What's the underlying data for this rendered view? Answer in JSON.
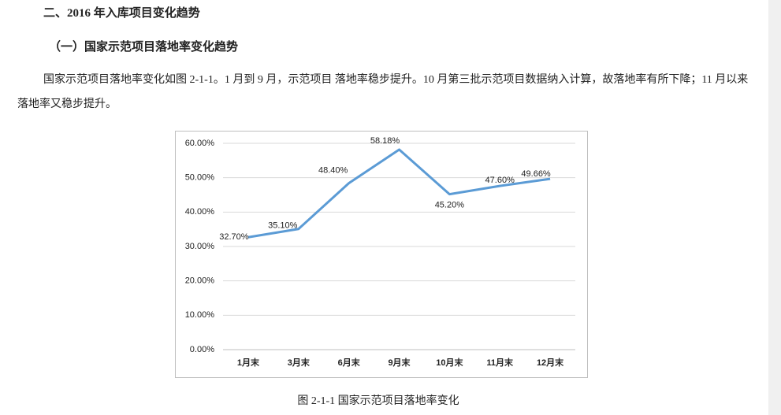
{
  "heading": "二、2016 年入库项目变化趋势",
  "subheading": "（一）国家示范项目落地率变化趋势",
  "paragraph": "国家示范项目落地率变化如图 2-1-1。1 月到 9 月，示范项目 落地率稳步提升。10 月第三批示范项目数据纳入计算，故落地率有所下降；11 月以来落地率又稳步提升。",
  "chart_data": {
    "type": "line",
    "categories": [
      "1月末",
      "3月末",
      "6月末",
      "9月末",
      "10月末",
      "11月末",
      "12月末"
    ],
    "values": [
      32.7,
      35.1,
      48.4,
      58.18,
      45.2,
      47.6,
      49.66
    ],
    "value_labels": [
      "32.70%",
      "35.10%",
      "48.40%",
      "58.18%",
      "45.20%",
      "47.60%",
      "49.66%"
    ],
    "color": "#5b9bd5",
    "ylim": [
      0,
      60
    ],
    "yticks": [
      {
        "value": 0,
        "label": "0.00%"
      },
      {
        "value": 10,
        "label": "10.00%"
      },
      {
        "value": 20,
        "label": "20.00%"
      },
      {
        "value": 30,
        "label": "30.00%"
      },
      {
        "value": 40,
        "label": "40.00%"
      },
      {
        "value": 50,
        "label": "50.00%"
      },
      {
        "value": 60,
        "label": "60.00%"
      }
    ],
    "grid": true
  },
  "caption": "图 2-1-1 国家示范项目落地率变化"
}
